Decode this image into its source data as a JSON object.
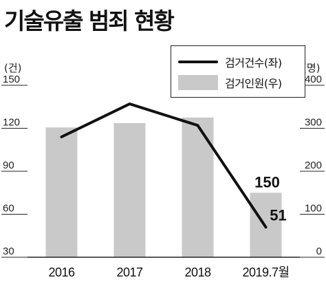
{
  "title": "기술유출 범죄 현황",
  "chart_data": {
    "type": "bar",
    "categories": [
      "2016",
      "2017",
      "2018",
      "2019.7월"
    ],
    "series": [
      {
        "name": "검거인원(우)",
        "type": "bar",
        "axis": "right",
        "values": [
          302,
          312,
          325,
          150
        ],
        "color": "#c9c9c9"
      },
      {
        "name": "검거건수(좌)",
        "type": "line",
        "axis": "left",
        "values": [
          114,
          137,
          122,
          51
        ],
        "color": "#111111"
      }
    ],
    "left_axis": {
      "unit": "(건)",
      "ticks": [
        30,
        60,
        90,
        120,
        150
      ],
      "ylim": [
        30,
        150
      ]
    },
    "right_axis": {
      "unit": "(명)",
      "ticks": [
        0,
        100,
        200,
        300,
        400
      ],
      "ylim": [
        0,
        400
      ]
    },
    "annotations": [
      {
        "series": "검거인원(우)",
        "category": "2019.7월",
        "text": "150"
      },
      {
        "series": "검거건수(좌)",
        "category": "2019.7월",
        "text": "51"
      }
    ],
    "legend": "top-right",
    "grid": false
  }
}
